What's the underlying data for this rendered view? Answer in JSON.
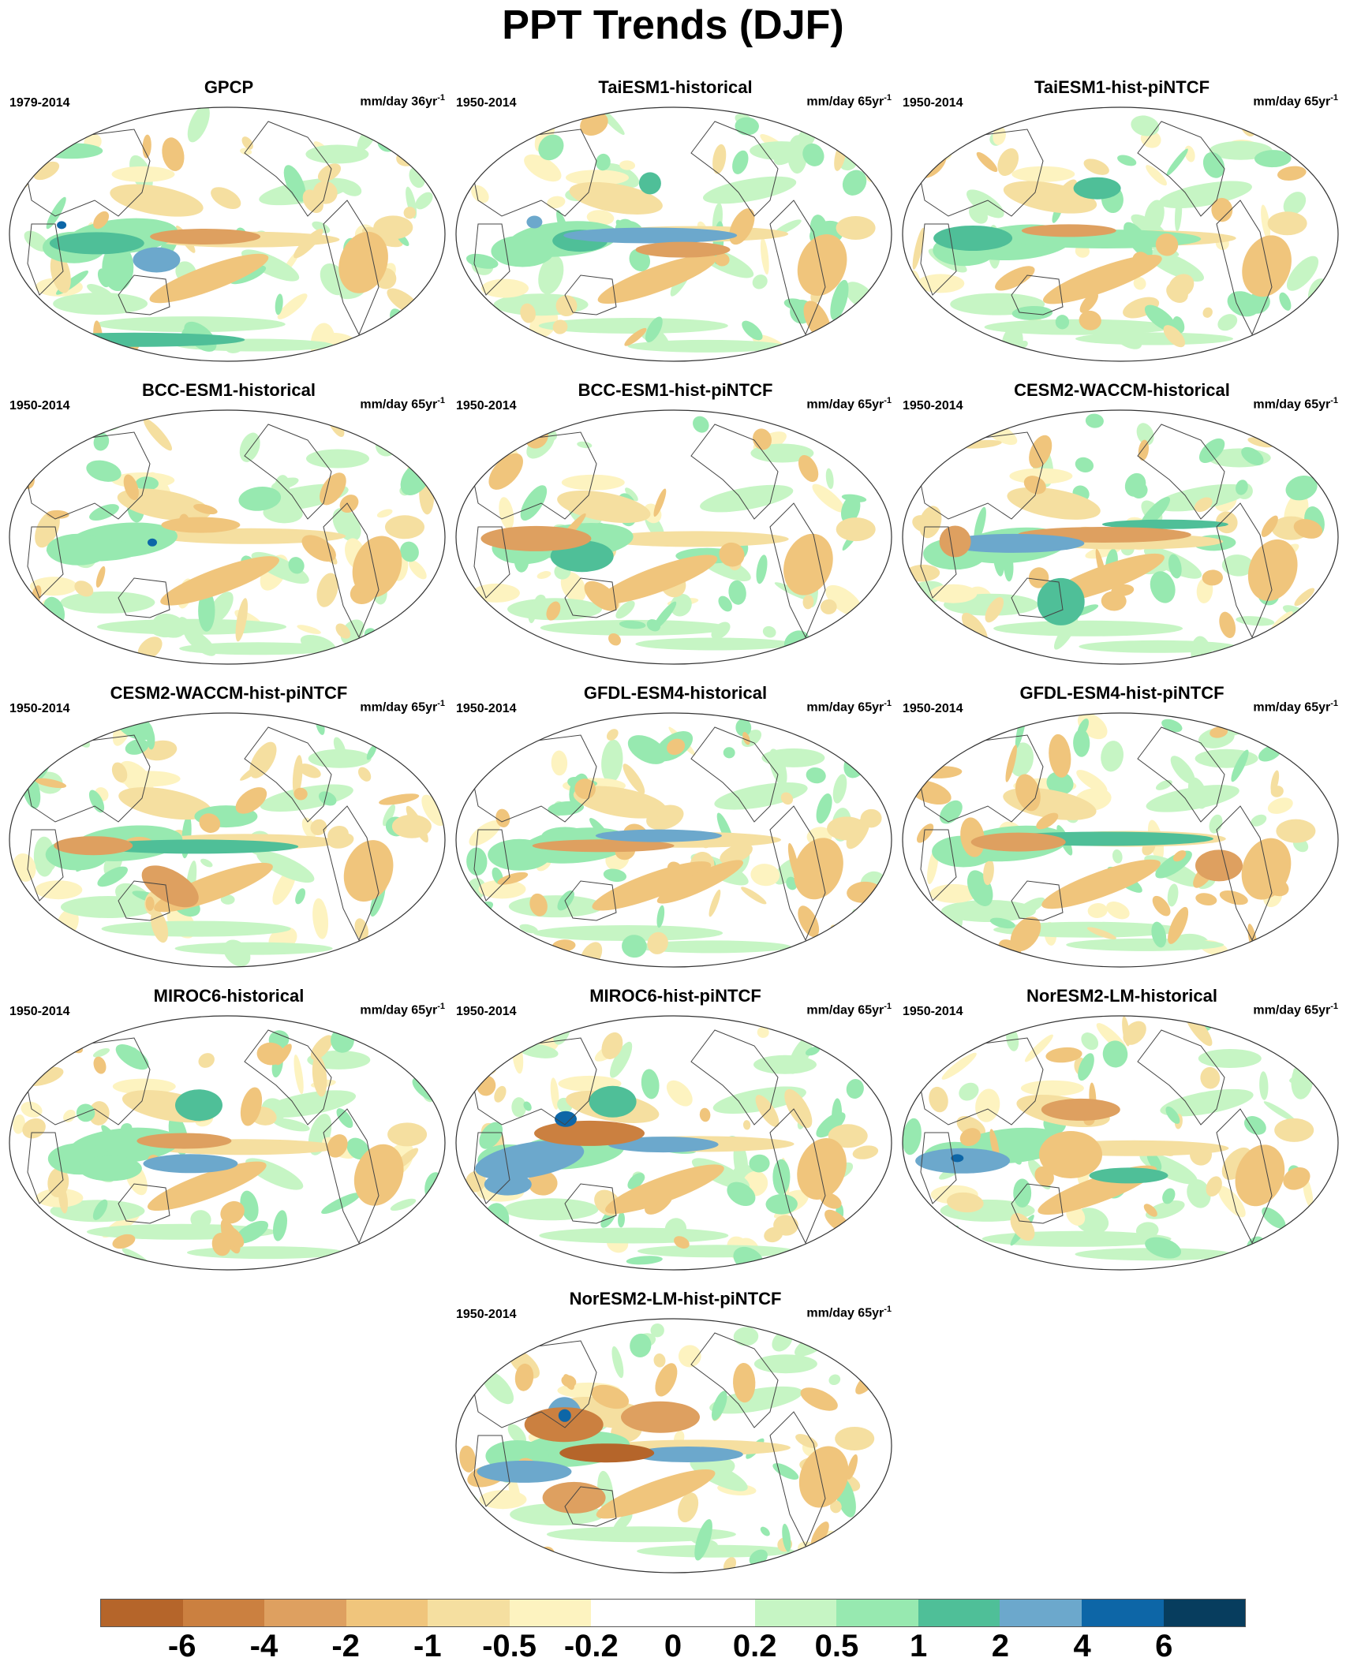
{
  "title": "PPT Trends (DJF)",
  "panels": [
    {
      "title": "GPCP",
      "period": "1979-2014",
      "unit": "mm/day 36yr",
      "unit_sup": "-1"
    },
    {
      "title": "TaiESM1-historical",
      "period": "1950-2014",
      "unit": "mm/day 65yr",
      "unit_sup": "-1"
    },
    {
      "title": "TaiESM1-hist-piNTCF",
      "period": "1950-2014",
      "unit": "mm/day 65yr",
      "unit_sup": "-1"
    },
    {
      "title": "BCC-ESM1-historical",
      "period": "1950-2014",
      "unit": "mm/day 65yr",
      "unit_sup": "-1"
    },
    {
      "title": "BCC-ESM1-hist-piNTCF",
      "period": "1950-2014",
      "unit": "mm/day 65yr",
      "unit_sup": "-1"
    },
    {
      "title": "CESM2-WACCM-historical",
      "period": "1950-2014",
      "unit": "mm/day 65yr",
      "unit_sup": "-1"
    },
    {
      "title": "CESM2-WACCM-hist-piNTCF",
      "period": "1950-2014",
      "unit": "mm/day 65yr",
      "unit_sup": "-1"
    },
    {
      "title": "GFDL-ESM4-historical",
      "period": "1950-2014",
      "unit": "mm/day 65yr",
      "unit_sup": "-1"
    },
    {
      "title": "GFDL-ESM4-hist-piNTCF",
      "period": "1950-2014",
      "unit": "mm/day 65yr",
      "unit_sup": "-1"
    },
    {
      "title": "MIROC6-historical",
      "period": "1950-2014",
      "unit": "mm/day 65yr",
      "unit_sup": "-1"
    },
    {
      "title": "MIROC6-hist-piNTCF",
      "period": "1950-2014",
      "unit": "mm/day 65yr",
      "unit_sup": "-1"
    },
    {
      "title": "NorESM2-LM-historical",
      "period": "1950-2014",
      "unit": "mm/day 65yr",
      "unit_sup": "-1"
    },
    {
      "title": "NorESM2-LM-hist-piNTCF",
      "period": "1950-2014",
      "unit": "mm/day 65yr",
      "unit_sup": "-1"
    }
  ],
  "colorbar": {
    "colors": [
      "#b5652a",
      "#cb8040",
      "#dea060",
      "#f0c57c",
      "#f5dfa0",
      "#fdf3c0",
      "#ffffff",
      "#ffffff",
      "#c6f5c4",
      "#97e9b0",
      "#4fbf98",
      "#6ca8cc",
      "#0d66a7",
      "#073d5e"
    ],
    "labels": [
      "-6",
      "-4",
      "-2",
      "-1",
      "-0.5",
      "-0.2",
      "0",
      "0.2",
      "0.5",
      "1",
      "2",
      "4",
      "6"
    ]
  }
}
